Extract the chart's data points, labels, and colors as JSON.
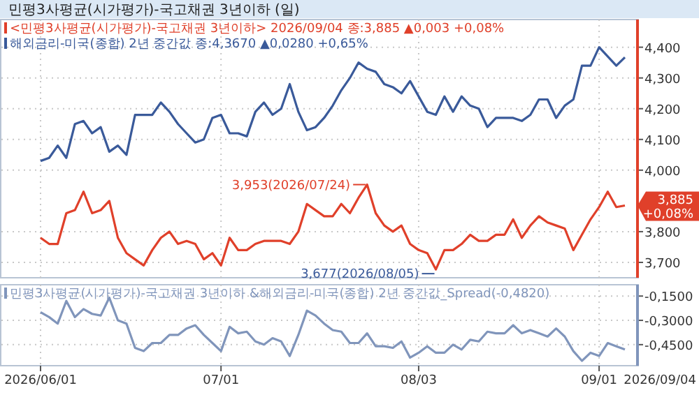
{
  "chart_data": [
    {
      "type": "line",
      "title": "민평3사평균(시가평가)-국고채권 3년이하 (일)",
      "categories": [
        null,
        null,
        null,
        null,
        null,
        null,
        null,
        null,
        null,
        null,
        null,
        null,
        null,
        null,
        null,
        null,
        null,
        null,
        null,
        null,
        null,
        null,
        null,
        null,
        null,
        null,
        null,
        null,
        null,
        null,
        null,
        null,
        null,
        null,
        null,
        null,
        null,
        null,
        null,
        null,
        null,
        null,
        null,
        null,
        null,
        null,
        null,
        null,
        null,
        null,
        null,
        null,
        null,
        null,
        null,
        null,
        null,
        null,
        null,
        null,
        null,
        null,
        null,
        null,
        null,
        null,
        null,
        null,
        null
      ],
      "series": [
        {
          "name": "<민평3사평균(시가평가)-국고채권 3년이하> 2026/09/04 종:3,885 ▲0,003 +0,08%",
          "color": "#e0402a",
          "values": [
            3780,
            3760,
            3760,
            3860,
            3870,
            3930,
            3860,
            3870,
            3900,
            3780,
            3730,
            3710,
            3690,
            3740,
            3780,
            3800,
            3760,
            3770,
            3760,
            3710,
            3730,
            3690,
            3780,
            3740,
            3740,
            3760,
            3770,
            3770,
            3770,
            3760,
            3800,
            3890,
            3870,
            3850,
            3850,
            3890,
            3860,
            3910,
            3953,
            3860,
            3820,
            3800,
            3820,
            3760,
            3740,
            3730,
            3677,
            3740,
            3740,
            3760,
            3790,
            3770,
            3770,
            3790,
            3790,
            3840,
            3780,
            3820,
            3850,
            3830,
            3820,
            3810,
            3740,
            3790,
            3840,
            3880,
            3930,
            3880,
            3885
          ]
        },
        {
          "name": "해외금리-미국(종합) 2년 중간값 종:4,3670 ▲0,0280 +0,65%",
          "color": "#3a5a9a",
          "values": [
            4030,
            4040,
            4080,
            4040,
            4150,
            4160,
            4120,
            4140,
            4060,
            4080,
            4050,
            4180,
            4180,
            4180,
            4220,
            4190,
            4150,
            4120,
            4090,
            4100,
            4170,
            4180,
            4120,
            4120,
            4110,
            4190,
            4220,
            4180,
            4200,
            4280,
            4190,
            4130,
            4140,
            4170,
            4210,
            4260,
            4300,
            4350,
            4330,
            4320,
            4280,
            4270,
            4250,
            4290,
            4240,
            4190,
            4180,
            4240,
            4190,
            4240,
            4210,
            4200,
            4140,
            4170,
            4170,
            4170,
            4160,
            4180,
            4230,
            4230,
            4170,
            4210,
            4230,
            4340,
            4340,
            4400,
            4370,
            4340,
            4367
          ]
        }
      ],
      "ylim": [
        3650,
        4490
      ],
      "yticks": [
        {
          "value": 3700,
          "label": "3,700"
        },
        {
          "value": 3800,
          "label": "3,800"
        },
        {
          "value": 4000,
          "label": "4,000"
        },
        {
          "value": 4100,
          "label": "4,100"
        },
        {
          "value": 4200,
          "label": "4,200"
        },
        {
          "value": 4300,
          "label": "4,300"
        },
        {
          "value": 4400,
          "label": "4,400"
        }
      ],
      "tick_labels": "y",
      "grid": true,
      "legend": "top left",
      "annotations": [
        "3,953(2026/07/24)",
        "3,677(2026/08/05)",
        "3,885 +0,08%"
      ]
    },
    {
      "type": "line",
      "categories": [
        "2026/06/01",
        null,
        null,
        null,
        null,
        null,
        null,
        null,
        null,
        null,
        null,
        null,
        null,
        null,
        null,
        null,
        null,
        null,
        null,
        null,
        null,
        "07/01",
        null,
        null,
        null,
        null,
        null,
        null,
        null,
        null,
        null,
        null,
        null,
        null,
        null,
        null,
        null,
        null,
        null,
        null,
        null,
        null,
        null,
        null,
        "08/03",
        null,
        null,
        null,
        null,
        null,
        null,
        null,
        null,
        null,
        null,
        null,
        null,
        null,
        null,
        null,
        null,
        null,
        null,
        null,
        null,
        "09/01",
        null,
        null,
        null
      ],
      "series": [
        {
          "name": "민평3사평균(시가평가)-국고채권 3년이하 &해외금리-미국(종합) 2년 중간값_Spread(-0,4820)",
          "color": "#8095bb",
          "values": [
            -0.25,
            -0.28,
            -0.32,
            -0.18,
            -0.28,
            -0.23,
            -0.26,
            -0.27,
            -0.16,
            -0.3,
            -0.32,
            -0.47,
            -0.49,
            -0.44,
            -0.44,
            -0.39,
            -0.39,
            -0.35,
            -0.33,
            -0.39,
            -0.44,
            -0.49,
            -0.34,
            -0.38,
            -0.37,
            -0.43,
            -0.45,
            -0.41,
            -0.43,
            -0.52,
            -0.39,
            -0.24,
            -0.27,
            -0.32,
            -0.36,
            -0.37,
            -0.44,
            -0.44,
            -0.38,
            -0.46,
            -0.46,
            -0.47,
            -0.43,
            -0.53,
            -0.5,
            -0.46,
            -0.5,
            -0.5,
            -0.45,
            -0.48,
            -0.42,
            -0.43,
            -0.37,
            -0.38,
            -0.38,
            -0.33,
            -0.38,
            -0.36,
            -0.38,
            -0.4,
            -0.35,
            -0.4,
            -0.49,
            -0.55,
            -0.5,
            -0.52,
            -0.44,
            -0.46,
            -0.48
          ]
        }
      ],
      "ylim": [
        -0.58,
        -0.08
      ],
      "yticks": [
        {
          "value": -0.15,
          "label": "-0,1500"
        },
        {
          "value": -0.3,
          "label": "-0,3000"
        },
        {
          "value": -0.45,
          "label": "-0,4500"
        }
      ],
      "grid": true,
      "legend": "top left",
      "annotations": [
        "2026/09/04"
      ]
    }
  ]
}
